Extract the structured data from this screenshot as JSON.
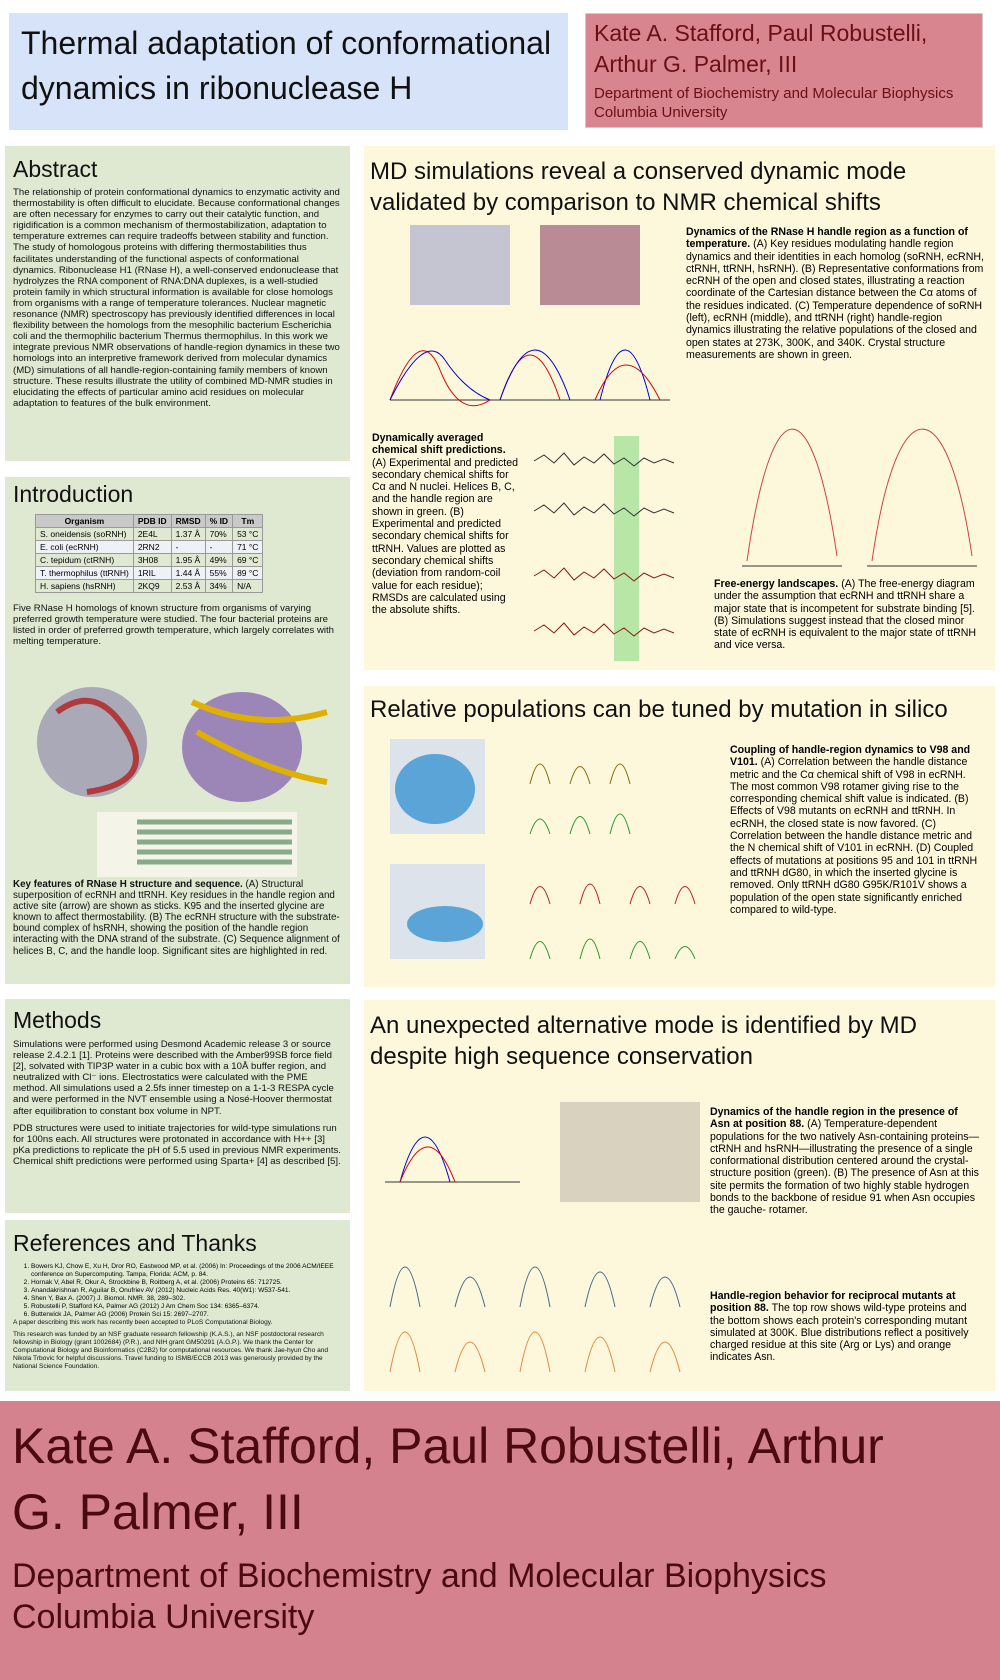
{
  "header": {
    "title": "Thermal adaptation of conformational dynamics in ribonuclease H",
    "authors": "Kate A. Stafford, Paul Robustelli, Arthur G. Palmer, III",
    "department": "Department of Biochemistry and Molecular Biophysics",
    "university": "Columbia University"
  },
  "abstract": {
    "heading": "Abstract",
    "text": "The relationship of protein conformational dynamics to enzymatic activity and thermostability is often difficult to elucidate. Because conformational changes are often necessary for enzymes to carry out their catalytic function, and rigidification is a common mechanism of thermostabilization, adaptation to temperature extremes can require tradeoffs between stability and function. The study of homologous proteins with differing thermostabilities thus facilitates understanding of the functional aspects of conformational dynamics. Ribonuclease H1 (RNase H), a well-conserved endonuclease that hydrolyzes the RNA component of RNA:DNA duplexes, is a well-studied protein family in which structural information is available for close homologs from organisms with a range of temperature tolerances. Nuclear magnetic resonance (NMR) spectroscopy has previously identified differences in local flexibility between the homologs from the mesophilic bacterium Escherichia coli and the thermophilic bacterium Thermus thermophilus. In this work we integrate previous NMR observations of handle-region dynamics in these two homologs into an interpretive framework derived from molecular dynamics (MD) simulations of all handle-region-containing family members of known structure. These results illustrate the utility of combined MD-NMR studies in elucidating the effects of particular amino acid residues on molecular adaptation to features of the bulk environment."
  },
  "introduction": {
    "heading": "Introduction",
    "table": {
      "header": [
        "Organism",
        "PDB ID",
        "RMSD",
        "% ID",
        "Tm"
      ],
      "rows": [
        [
          "S. oneidensis (soRNH)",
          "2E4L",
          "1.37 Å",
          "70%",
          "53 °C"
        ],
        [
          "E. coli (ecRNH)",
          "2RN2",
          "-",
          "-",
          "71 °C"
        ],
        [
          "C. tepidum (ctRNH)",
          "3H08",
          "1.95 Å",
          "49%",
          "69 °C"
        ],
        [
          "T. thermophilus (ttRNH)",
          "1RIL",
          "1.44 Å",
          "55%",
          "89 °C"
        ],
        [
          "H. sapiens (hsRNH)",
          "2KQ9",
          "2.53 Å",
          "34%",
          "N/A"
        ]
      ]
    },
    "text": "Five RNase H homologs of known structure from organisms of varying preferred growth temperature were studied. The four bacterial proteins are listed in order of preferred growth temperature, which largely correlates with melting temperature.",
    "caption_title": "Key features of RNase H structure and sequence.",
    "caption": "(A) Structural superposition of ecRNH and ttRNH. Key residues in the handle region and active site (arrow) are shown as sticks. K95 and the inserted glycine are known to affect thermostability. (B) The ecRNH structure with the substrate-bound complex of hsRNH, showing the position of the handle region interacting with the DNA strand of the substrate. (C) Sequence alignment of helices B, C, and the handle loop. Significant sites are highlighted in red."
  },
  "methods": {
    "heading": "Methods",
    "p1": "Simulations were performed using Desmond Academic release 3 or source release 2.4.2.1 [1]. Proteins were described with the Amber99SB force field [2], solvated with TIP3P water in a cubic box with a 10Å buffer region, and neutralized with Cl⁻ ions. Electrostatics were calculated with the PME method. All simulations used a 2.5fs inner timestep on a 1-1-3 RESPA cycle and were performed in the NVT ensemble using a Nosé-Hoover thermostat after equilibration to constant box volume in NPT.",
    "p2": "PDB structures were used to initiate trajectories for wild-type simulations run for 100ns each. All structures were protonated in accordance with H++ [3] pKa predictions to replicate the pH of 5.5 used in previous NMR experiments. Chemical shift predictions were performed using Sparta+ [4] as described [5]."
  },
  "references": {
    "heading": "References and Thanks",
    "items": [
      "Bowers KJ, Chow E, Xu H, Dror RO, Eastwood MP, et al. (2006) In: Proceedings of the 2006 ACM/IEEE conference on Supercomputing. Tampa, Florida: ACM, p. 84.",
      "Hornak V, Abel R, Okur A, Strockbine B, Roitberg A, et al. (2006) Proteins 65: 712725.",
      "Anandakrishnan R, Aguilar B, Onufriev AV (2012) Nucleic Acids Res. 40(W1): W537-541.",
      "Shen Y, Bax A. (2007) J. Biomol. NMR. 38, 289–302.",
      "Robustelli P, Stafford KA, Palmer AG (2012) J Am Chem Soc 134: 6365–6374.",
      "Butterwick JA, Palmer AG (2006) Protein Sci 15: 2697–2707."
    ],
    "note": "A paper describing this work has recently been accepted to PLoS Computational Biology.",
    "thanks": "This research was funded by an NSF graduate research fellowship (K.A.S.), an NSF postdoctoral research fellowship in Biology (grant 1002684) (P.R.), and NIH grant GM50291 (A.G.P.). We thank the Center for Computational Biology and Bioinformatics (C2B2) for computational resources. We thank Jae-hyun Cho and Nikola Trbovic for helpful discussions. Travel funding to ISMB/ECCB 2013 was generously provided by the National Science Foundation."
  },
  "md": {
    "heading": "MD simulations reveal a conserved dynamic mode validated by comparison to NMR chemical shifts",
    "cap1_title": "Dynamics of the RNase H handle region as a function of temperature.",
    "cap1": "(A) Key residues modulating handle region dynamics and their identities in each homolog (soRNH, ecRNH, ctRNH, ttRNH, hsRNH). (B) Representative conformations from ecRNH of the open and closed states, illustrating a reaction coordinate of the Cartesian distance between the Cα atoms of the residues indicated. (C) Temperature dependence of soRNH (left), ecRNH (middle), and ttRNH (right) handle-region dynamics illustrating the relative populations of the closed and open states at 273K, 300K, and 340K. Crystal structure measurements are shown in green.",
    "cap2_title": "Dynamically averaged chemical shift predictions.",
    "cap2": "(A) Experimental and predicted secondary chemical shifts for Cα and N nuclei. Helices B, C, and the handle region are shown in green. (B) Experimental and predicted secondary chemical shifts for ttRNH. Values are plotted as secondary chemical shifts (deviation from random-coil value for each residue); RMSDs are calculated using the absolute shifts.",
    "cap3_title": "Free-energy landscapes.",
    "cap3": "(A) The free-energy diagram under the assumption that ecRNH and ttRNH share a major state that is incompetent for substrate binding [5]. (B) Simulations suggest instead that the closed minor state of ecRNH is equivalent to the major state of ttRNH and vice versa."
  },
  "relpop": {
    "heading": "Relative populations can be tuned by mutation in silico",
    "cap_title": "Coupling of handle-region dynamics to V98 and V101.",
    "cap": "(A) Correlation between the handle distance metric and the Cα chemical shift of V98 in ecRNH. The most common V98 rotamer giving rise to the corresponding chemical shift value is indicated. (B) Effects of V98 mutants on ecRNH and ttRNH. In ecRNH, the closed state is now favored. (C) Correlation between the handle distance metric and the N chemical shift of V101 in ecRNH. (D) Coupled effects of mutations at positions 95 and 101 in ttRNH and ttRNH dG80, in which the inserted glycine is removed. Only ttRNH dG80 G95K/R101V shows a population of the open state significantly enriched compared to wild-type."
  },
  "unexpected": {
    "heading": "An unexpected alternative mode is identified by MD despite high sequence conservation",
    "cap1_title": "Dynamics of the handle region in the presence of Asn at position 88.",
    "cap1": "(A) Temperature-dependent populations for the two natively Asn-containing proteins—ctRNH and hsRNH—illustrating the presence of a single conformational distribution centered around the crystal-structure position (green). (B) The presence of Asn at this site permits the formation of two highly stable hydrogen bonds to the backbone of residue 91 when Asn occupies the gauche- rotamer.",
    "cap2_title": "Handle-region behavior for reciprocal mutants at position 88.",
    "cap2": "The top row shows wild-type proteins and the bottom shows each protein's corresponding mutant simulated at 300K. Blue distributions reflect a positively charged residue at this site (Arg or Lys) and orange indicates Asn."
  }
}
